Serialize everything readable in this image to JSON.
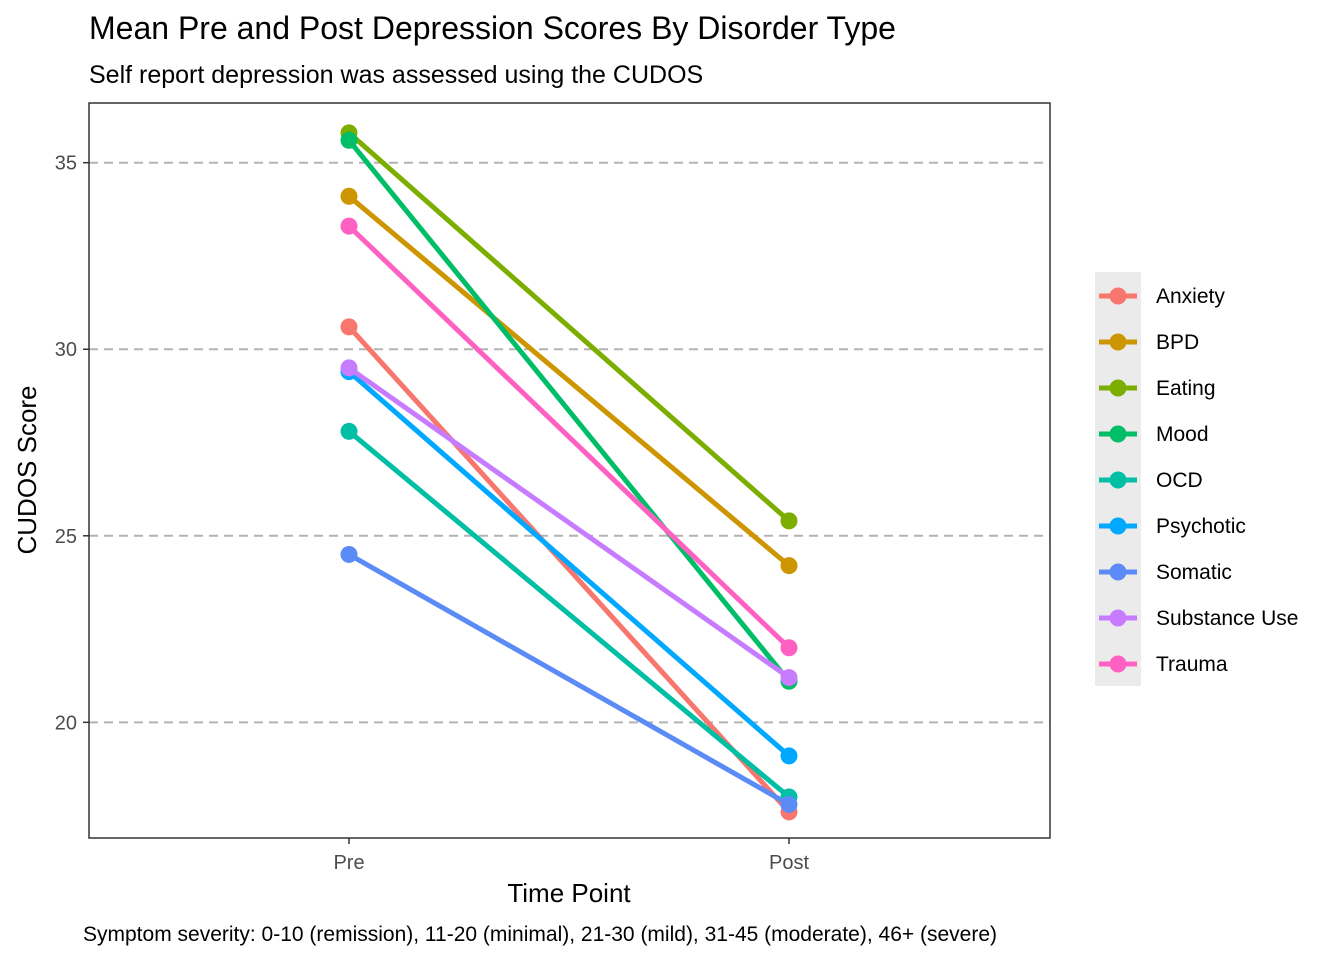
{
  "chart_data": {
    "type": "line",
    "title": "Mean Pre and Post Depression Scores By Disorder Type",
    "subtitle": "Self report depression was assessed using the CUDOS",
    "xlabel": "Time Point",
    "ylabel": "CUDOS Score",
    "caption": "Symptom severity: 0-10 (remission), 11-20 (minimal), 21-30 (mild), 31-45 (moderate), 46+ (severe)",
    "categories": [
      "Pre",
      "Post"
    ],
    "ylim": [
      16.9,
      36.6
    ],
    "yticks": [
      20,
      25,
      30,
      35
    ],
    "grid": "horizontal dashed at major ticks",
    "legend_position": "right",
    "series": [
      {
        "name": "Anxiety",
        "color": "#F8766D",
        "values": [
          30.6,
          17.6
        ]
      },
      {
        "name": "BPD",
        "color": "#CD9600",
        "values": [
          34.1,
          24.2
        ]
      },
      {
        "name": "Eating",
        "color": "#7CAE00",
        "values": [
          35.8,
          25.4
        ]
      },
      {
        "name": "Mood",
        "color": "#00BE67",
        "values": [
          35.6,
          21.1
        ]
      },
      {
        "name": "OCD",
        "color": "#00BFA4",
        "values": [
          27.8,
          18.0
        ]
      },
      {
        "name": "Psychotic",
        "color": "#00A9FF",
        "values": [
          29.4,
          19.1
        ]
      },
      {
        "name": "Somatic",
        "color": "#5B8BF7",
        "values": [
          24.5,
          17.8
        ]
      },
      {
        "name": "Substance Use",
        "color": "#C77CFF",
        "values": [
          29.5,
          21.2
        ]
      },
      {
        "name": "Trauma",
        "color": "#FF61C3",
        "values": [
          33.3,
          22.0
        ]
      }
    ]
  }
}
